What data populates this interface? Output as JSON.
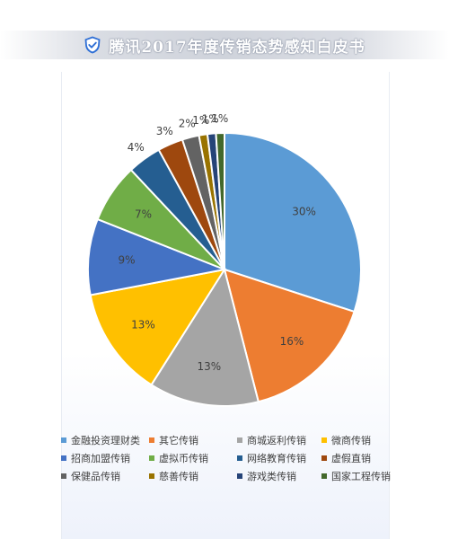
{
  "header": {
    "title": "腾讯2017年度传销态势感知白皮书",
    "icon": "shield-check-icon",
    "accent": "#2f6fd6"
  },
  "chart_data": {
    "type": "pie",
    "title": "",
    "start": "top, clockwise",
    "legend_position": "bottom",
    "slices": [
      {
        "label": "金融投资理财类",
        "value": 30,
        "data_label": "30%",
        "color": "#5b9bd5"
      },
      {
        "label": "其它传销",
        "value": 16,
        "data_label": "16%",
        "color": "#ed7d31"
      },
      {
        "label": "商城返利传销",
        "value": 13,
        "data_label": "13%",
        "color": "#a5a5a5"
      },
      {
        "label": "微商传销",
        "value": 13,
        "data_label": "13%",
        "color": "#ffc000"
      },
      {
        "label": "招商加盟传销",
        "value": 9,
        "data_label": "9%",
        "color": "#4472c4"
      },
      {
        "label": "虚拟币传销",
        "value": 7,
        "data_label": "7%",
        "color": "#70ad47"
      },
      {
        "label": "网络教育传销",
        "value": 4,
        "data_label": "4%",
        "color": "#255e91"
      },
      {
        "label": "虚假直销",
        "value": 3,
        "data_label": "3%",
        "color": "#9e480e"
      },
      {
        "label": "保健品传销",
        "value": 2,
        "data_label": "2%",
        "color": "#636363"
      },
      {
        "label": "慈善传销",
        "value": 1,
        "data_label": "1%",
        "color": "#997300"
      },
      {
        "label": "游戏类传销",
        "value": 1,
        "data_label": "1%",
        "color": "#264478"
      },
      {
        "label": "国家工程传销",
        "value": 1,
        "data_label": "1%",
        "color": "#43682b"
      }
    ]
  }
}
